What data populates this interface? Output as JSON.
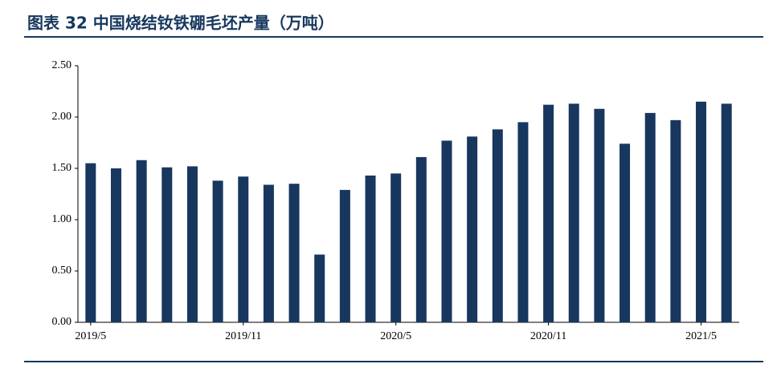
{
  "chart_data": {
    "type": "bar",
    "title": "图表 32   中国烧结钕铁硼毛坯产量（万吨）",
    "categories": [
      "2019/5",
      null,
      null,
      null,
      null,
      null,
      "2019/11",
      null,
      null,
      null,
      null,
      null,
      "2020/5",
      null,
      null,
      null,
      null,
      null,
      "2020/11",
      null,
      null,
      null,
      null,
      null,
      "2021/5",
      null
    ],
    "values": [
      1.55,
      1.5,
      1.58,
      1.51,
      1.52,
      1.38,
      1.42,
      1.34,
      1.35,
      0.66,
      1.29,
      1.43,
      1.45,
      1.61,
      1.77,
      1.81,
      1.88,
      1.95,
      2.12,
      2.13,
      2.08,
      1.74,
      2.04,
      1.97,
      2.15,
      2.13
    ],
    "color": "#17375e",
    "ylim": [
      0,
      2.5
    ],
    "yticks": [
      {
        "value": 0,
        "label": "0.00"
      },
      {
        "value": 0.5,
        "label": "0.50"
      },
      {
        "value": 1,
        "label": "1.00"
      },
      {
        "value": 1.5,
        "label": "1.50"
      },
      {
        "value": 2,
        "label": "2.00"
      },
      {
        "value": 2.5,
        "label": "2.50"
      }
    ],
    "grid": false
  }
}
